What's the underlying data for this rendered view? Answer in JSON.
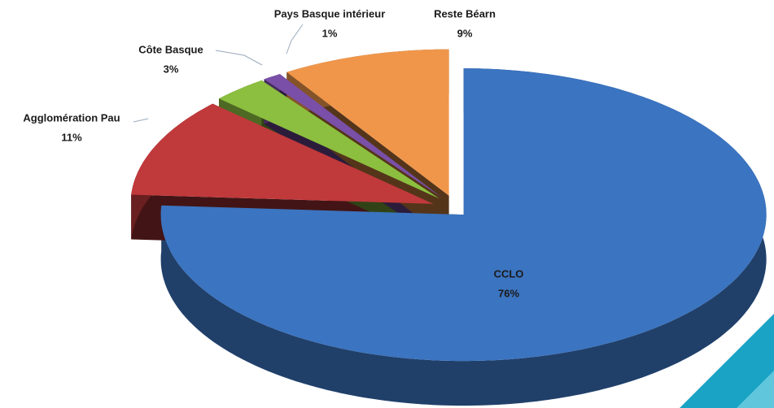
{
  "chart_data": {
    "type": "pie",
    "categories": [
      "CCLO",
      "Agglomération Pau",
      "Côte Basque",
      "Pays Basque intérieur",
      "Reste Béarn"
    ],
    "values": [
      76,
      11,
      3,
      1,
      9
    ],
    "value_labels": [
      "76%",
      "11%",
      "3%",
      "1%",
      "9%"
    ],
    "colors": [
      "#3b74c0",
      "#c0393b",
      "#8cbf3f",
      "#7a4fa8",
      "#f0964a"
    ]
  }
}
